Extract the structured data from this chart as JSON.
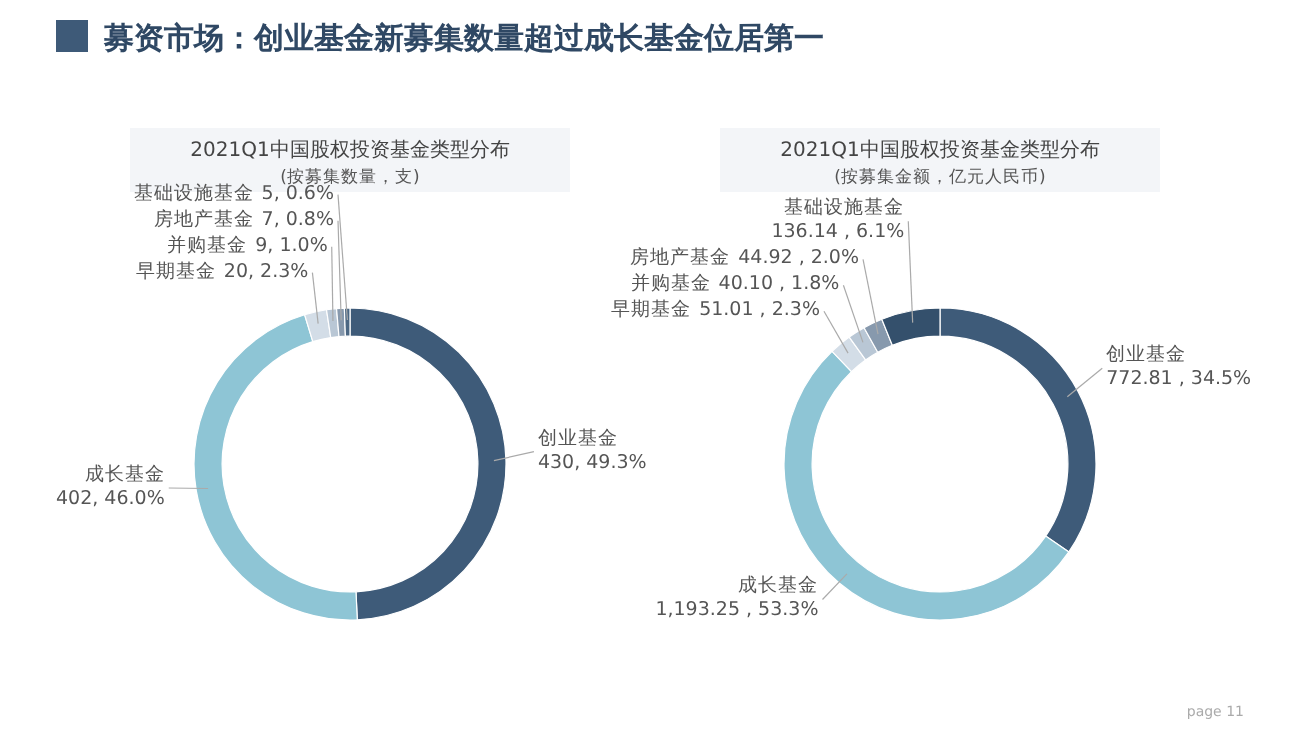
{
  "chart_data": [
    {
      "type": "donut",
      "title": "2021Q1中国股权投资基金类型分布",
      "subtitle": "(按募集数量，支)",
      "annotations": [
        "募资市场：创业基金新募集数量超过成长基金位居第一"
      ],
      "categories": [
        "创业基金",
        "成长基金",
        "早期基金",
        "并购基金",
        "房地产基金",
        "基础设施基金"
      ],
      "values": [
        430,
        402,
        20,
        9,
        7,
        5
      ],
      "colors": [
        "#3e5b79",
        "#8ec5d5",
        "#d3dde7",
        "#b9c7d5",
        "#8799ad",
        "#4b6783"
      ],
      "value_labels": [
        "430, 49.3%",
        "402, 46.0%",
        "20, 2.3%",
        "9, 1.0%",
        "7, 0.8%",
        "5, 0.6%"
      ]
    },
    {
      "type": "donut",
      "title": "2021Q1中国股权投资基金类型分布",
      "subtitle": "(按募集金额，亿元人民币)",
      "annotations": [
        "page 11"
      ],
      "categories": [
        "创业基金",
        "成长基金",
        "早期基金",
        "并购基金",
        "房地产基金",
        "基础设施基金"
      ],
      "values": [
        772.81,
        1193.25,
        51.01,
        40.1,
        44.92,
        136.14
      ],
      "colors": [
        "#3e5b79",
        "#8ec5d5",
        "#d3dde7",
        "#b9c7d5",
        "#8799ad",
        "#34506c"
      ],
      "value_labels": [
        "772.81 , 34.5%",
        "1,193.25 , 53.3%",
        "51.01 , 2.3%",
        "40.10 , 1.8%",
        "44.92 , 2.0%",
        "136.14 , 6.1%"
      ]
    }
  ]
}
